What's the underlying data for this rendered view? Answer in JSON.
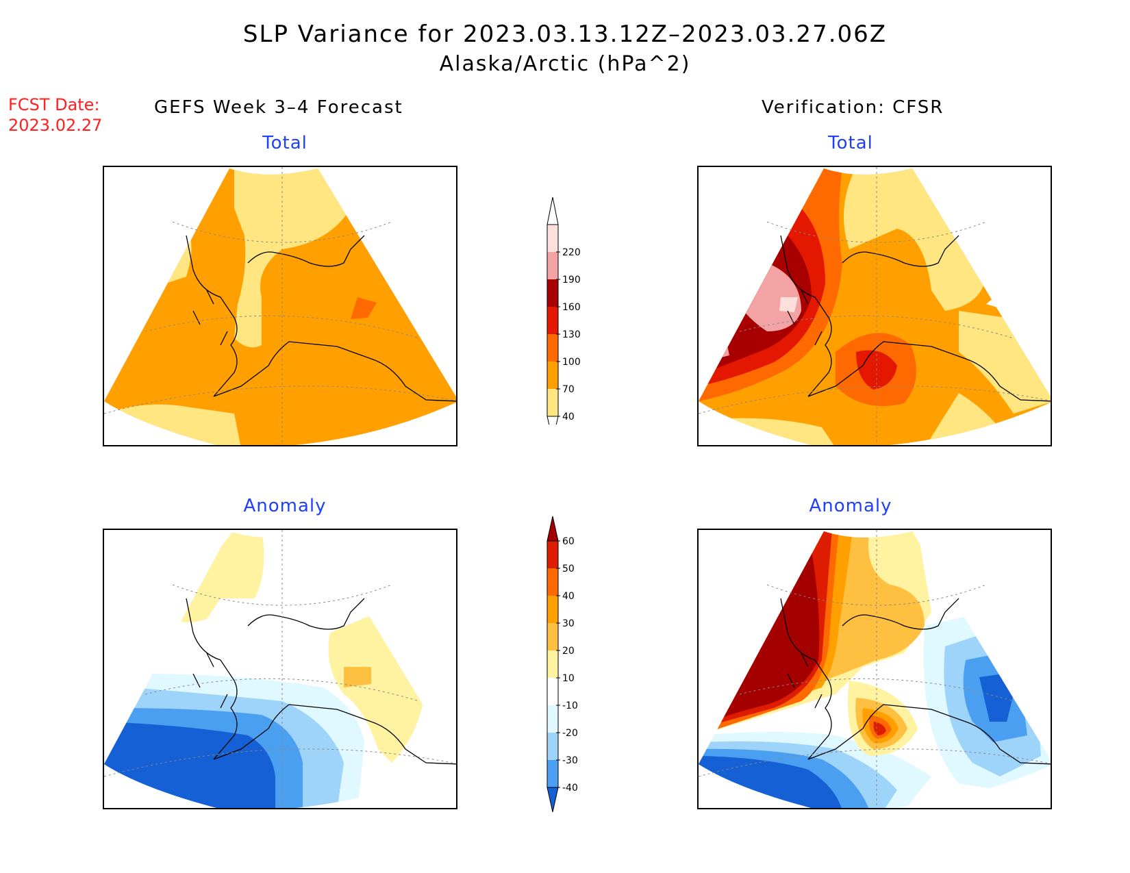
{
  "title": "SLP Variance for 2023.03.13.12Z–2023.03.27.06Z",
  "subtitle": "Alaska/Arctic (hPa^2)",
  "forecast_date_label": "FCST Date:",
  "forecast_date": "2023.02.27",
  "left_column_title": "GEFS Week 3–4 Forecast",
  "right_column_title": "Verification: CFSR",
  "panels": {
    "top_left": "Total",
    "top_right": "Total",
    "bottom_left": "Anomaly",
    "bottom_right": "Anomaly"
  },
  "total_colorbar": {
    "levels": [
      "220",
      "190",
      "160",
      "130",
      "100",
      "70",
      "40"
    ],
    "colors": [
      "#fde0dc",
      "#f3a3a3",
      "#a80000",
      "#e41800",
      "#ff6a00",
      "#ffa000",
      "#ffe680"
    ]
  },
  "anomaly_colorbar": {
    "levels": [
      "60",
      "50",
      "40",
      "30",
      "20",
      "10",
      "-10",
      "-20",
      "-30",
      "-40"
    ],
    "colors": [
      "#a50000",
      "#dd1c00",
      "#ff6a00",
      "#ffa000",
      "#ffbf40",
      "#fff2a0",
      "#ffffff",
      "#e0f8ff",
      "#9ed3fa",
      "#4a9ff0",
      "#1560d4"
    ]
  }
}
